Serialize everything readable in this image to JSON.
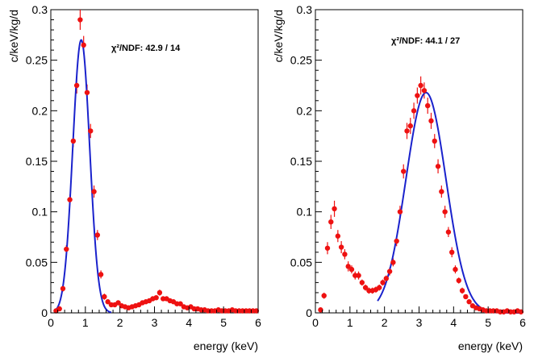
{
  "chart_data": [
    {
      "type": "scatter",
      "title": "",
      "xlabel": "energy (keV)",
      "ylabel": "c/keV/kg/d",
      "xlim": [
        0,
        6
      ],
      "ylim": [
        0,
        0.3
      ],
      "xticks": [
        "0",
        "1",
        "2",
        "3",
        "4",
        "5",
        "6"
      ],
      "yticks": [
        "0",
        "0.05",
        "0.1",
        "0.15",
        "0.2",
        "0.25",
        "0.3"
      ],
      "annotation": "χ²/NDF: 42.9 / 14",
      "grid": false,
      "series": [
        {
          "kind": "points-with-errors",
          "color": "#ee1111",
          "x": [
            0.15,
            0.25,
            0.35,
            0.45,
            0.55,
            0.65,
            0.75,
            0.85,
            0.95,
            1.05,
            1.15,
            1.25,
            1.35,
            1.45,
            1.55,
            1.65,
            1.75,
            1.85,
            1.95,
            2.05,
            2.15,
            2.25,
            2.35,
            2.45,
            2.55,
            2.65,
            2.75,
            2.85,
            2.95,
            3.05,
            3.15,
            3.25,
            3.35,
            3.45,
            3.55,
            3.65,
            3.75,
            3.85,
            3.95,
            4.05,
            4.15,
            4.25,
            4.35,
            4.45,
            4.55,
            4.65,
            4.75,
            4.85,
            4.95,
            5.05,
            5.15,
            5.25,
            5.35,
            5.45,
            5.55,
            5.65,
            5.75,
            5.85,
            5.95
          ],
          "y": [
            0.002,
            0.004,
            0.024,
            0.063,
            0.112,
            0.17,
            0.225,
            0.29,
            0.265,
            0.218,
            0.18,
            0.12,
            0.077,
            0.038,
            0.016,
            0.011,
            0.008,
            0.008,
            0.01,
            0.007,
            0.006,
            0.005,
            0.006,
            0.007,
            0.008,
            0.01,
            0.011,
            0.012,
            0.014,
            0.015,
            0.02,
            0.014,
            0.014,
            0.012,
            0.011,
            0.009,
            0.009,
            0.006,
            0.005,
            0.006,
            0.004,
            0.004,
            0.003,
            0.003,
            0.002,
            0.002,
            0.002,
            0.003,
            0.002,
            0.002,
            0.002,
            0.003,
            0.002,
            0.002,
            0.002,
            0.002,
            0.002,
            0.002,
            0.002
          ],
          "yerr": [
            0.002,
            0.002,
            0.003,
            0.004,
            0.005,
            0.006,
            0.008,
            0.01,
            0.009,
            0.008,
            0.007,
            0.006,
            0.005,
            0.004,
            0.003,
            0.002,
            0.002,
            0.002,
            0.002,
            0.002,
            0.002,
            0.002,
            0.002,
            0.002,
            0.002,
            0.002,
            0.002,
            0.002,
            0.002,
            0.002,
            0.003,
            0.002,
            0.002,
            0.002,
            0.002,
            0.002,
            0.002,
            0.002,
            0.002,
            0.002,
            0.002,
            0.002,
            0.002,
            0.002,
            0.002,
            0.002,
            0.002,
            0.002,
            0.002,
            0.002,
            0.002,
            0.002,
            0.002,
            0.002,
            0.002,
            0.002,
            0.002,
            0.002,
            0.002
          ]
        },
        {
          "kind": "fit-curve",
          "color": "#1a22cc",
          "fit_range": [
            0.1,
            1.75
          ],
          "amplitude": 0.27,
          "mean": 0.88,
          "sigma": 0.245
        }
      ]
    },
    {
      "type": "scatter",
      "title": "",
      "xlabel": "energy (keV)",
      "ylabel": "c/keV/kg/d",
      "xlim": [
        0,
        6
      ],
      "ylim": [
        0,
        0.3
      ],
      "xticks": [
        "0",
        "1",
        "2",
        "3",
        "4",
        "5",
        "6"
      ],
      "yticks": [
        "0",
        "0.05",
        "0.1",
        "0.15",
        "0.2",
        "0.25",
        "0.3"
      ],
      "annotation": "χ²/NDF: 44.1 / 27",
      "grid": false,
      "series": [
        {
          "kind": "points-with-errors",
          "color": "#ee1111",
          "x": [
            0.15,
            0.25,
            0.35,
            0.45,
            0.55,
            0.65,
            0.75,
            0.85,
            0.95,
            1.05,
            1.15,
            1.25,
            1.35,
            1.45,
            1.55,
            1.65,
            1.75,
            1.85,
            1.95,
            2.05,
            2.15,
            2.25,
            2.35,
            2.45,
            2.55,
            2.65,
            2.75,
            2.85,
            2.95,
            3.05,
            3.15,
            3.25,
            3.35,
            3.45,
            3.55,
            3.65,
            3.75,
            3.85,
            3.95,
            4.05,
            4.15,
            4.25,
            4.35,
            4.45,
            4.55,
            4.65,
            4.75,
            4.85,
            4.95,
            5.05,
            5.15,
            5.25,
            5.35,
            5.45,
            5.55,
            5.65,
            5.75,
            5.85,
            5.95
          ],
          "y": [
            0.003,
            0.017,
            0.064,
            0.09,
            0.103,
            0.076,
            0.065,
            0.058,
            0.046,
            0.043,
            0.037,
            0.037,
            0.03,
            0.025,
            0.022,
            0.022,
            0.023,
            0.025,
            0.03,
            0.034,
            0.041,
            0.05,
            0.071,
            0.1,
            0.14,
            0.18,
            0.185,
            0.2,
            0.215,
            0.225,
            0.22,
            0.205,
            0.19,
            0.17,
            0.145,
            0.12,
            0.1,
            0.08,
            0.06,
            0.043,
            0.032,
            0.022,
            0.016,
            0.011,
            0.007,
            0.005,
            0.004,
            0.003,
            0.002,
            0.002,
            0.002,
            0.002,
            0.001,
            0.001,
            0.002,
            0.001,
            0.001,
            0.002,
            0.001
          ],
          "yerr": [
            0.002,
            0.003,
            0.006,
            0.007,
            0.008,
            0.006,
            0.006,
            0.005,
            0.005,
            0.004,
            0.004,
            0.004,
            0.003,
            0.003,
            0.003,
            0.003,
            0.003,
            0.003,
            0.003,
            0.003,
            0.004,
            0.004,
            0.005,
            0.006,
            0.007,
            0.008,
            0.008,
            0.008,
            0.008,
            0.009,
            0.008,
            0.008,
            0.008,
            0.007,
            0.007,
            0.006,
            0.006,
            0.005,
            0.005,
            0.004,
            0.003,
            0.003,
            0.002,
            0.002,
            0.002,
            0.002,
            0.001,
            0.001,
            0.001,
            0.001,
            0.001,
            0.001,
            0.001,
            0.001,
            0.001,
            0.001,
            0.001,
            0.001,
            0.001
          ]
        },
        {
          "kind": "fit-curve",
          "color": "#1a22cc",
          "fit_range": [
            1.8,
            6.0
          ],
          "amplitude": 0.218,
          "mean": 3.2,
          "sigma": 0.58
        }
      ]
    }
  ]
}
